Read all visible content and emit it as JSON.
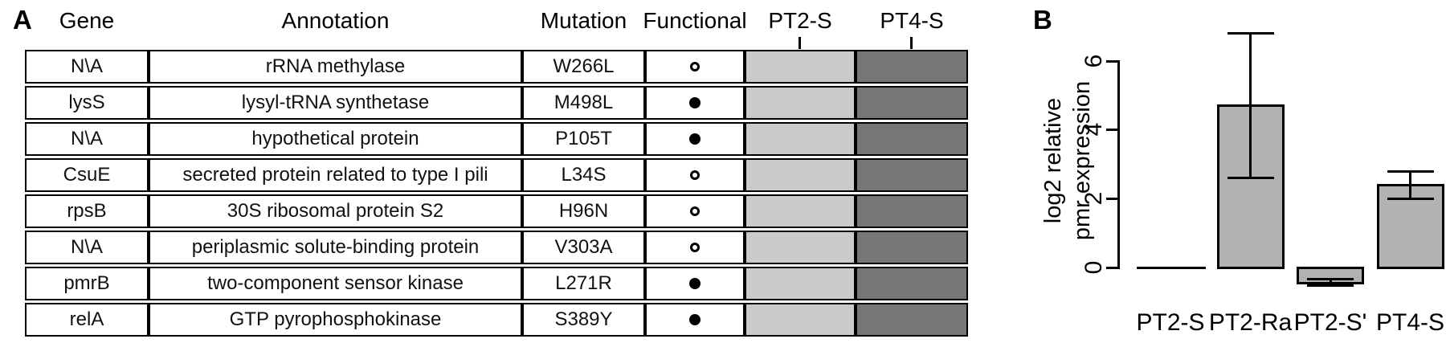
{
  "panels": {
    "a_label": "A",
    "b_label": "B"
  },
  "table": {
    "headers": [
      "Gene",
      "Annotation",
      "Mutation",
      "Functional",
      "PT2-S",
      "PT4-S"
    ],
    "strain_columns": [
      "PT2-S",
      "PT4-S"
    ],
    "strain_colors": {
      "PT2-S": "#cacaca",
      "PT4-S": "#767676"
    },
    "functional_legend": {
      "open": "non-functional-circle",
      "filled": "functional-circle"
    },
    "rows": [
      {
        "gene": "N\\A",
        "annotation": "rRNA methylase",
        "mutation": "W266L",
        "functional": "open"
      },
      {
        "gene": "lysS",
        "annotation": "lysyl-tRNA synthetase",
        "mutation": "M498L",
        "functional": "filled"
      },
      {
        "gene": "N\\A",
        "annotation": "hypothetical protein",
        "mutation": "P105T",
        "functional": "filled"
      },
      {
        "gene": "CsuE",
        "annotation": "secreted protein related to type I pili",
        "mutation": "L34S",
        "functional": "open"
      },
      {
        "gene": "rpsB",
        "annotation": "30S ribosomal protein S2",
        "mutation": "H96N",
        "functional": "open"
      },
      {
        "gene": "N\\A",
        "annotation": "periplasmic solute-binding protein",
        "mutation": "V303A",
        "functional": "open"
      },
      {
        "gene": "pmrB",
        "annotation": "two-component sensor kinase",
        "mutation": "L271R",
        "functional": "filled"
      },
      {
        "gene": "relA",
        "annotation": "GTP pyrophosphokinase",
        "mutation": "S389Y",
        "functional": "filled"
      }
    ]
  },
  "chart_data": {
    "type": "bar",
    "title": "",
    "xlabel": "",
    "ylabel": "log2 relative pmr expression",
    "ylabel_lines": [
      "log2 relative",
      "pmr expression"
    ],
    "categories": [
      "PT2-S",
      "PT2-Ra",
      "PT2-S'",
      "PT4-S"
    ],
    "values": [
      0,
      4.7,
      -0.44,
      2.4
    ],
    "error_high": [
      null,
      6.8,
      -0.32,
      2.8
    ],
    "error_low": [
      null,
      2.6,
      -0.51,
      2.0
    ],
    "yticks": [
      0,
      2,
      4,
      6
    ],
    "ylim": [
      -0.6,
      6.9
    ],
    "bar_color": "#b2b2b2",
    "grid": false,
    "legend": null
  }
}
